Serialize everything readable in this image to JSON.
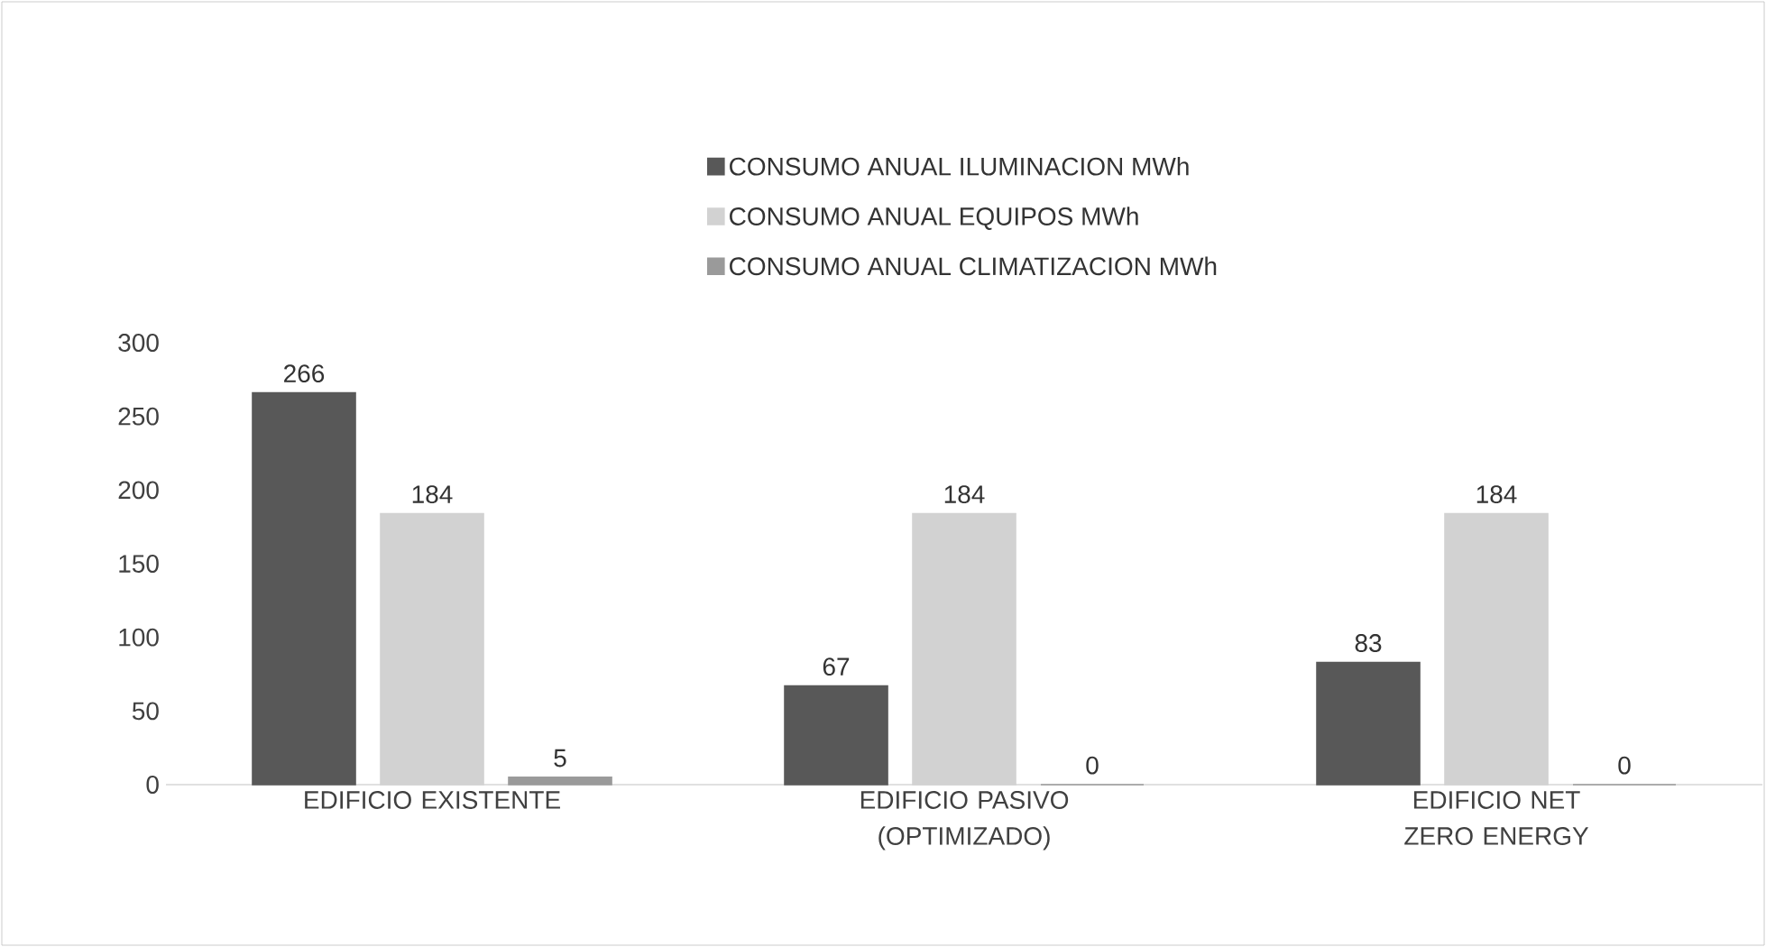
{
  "chart_data": {
    "type": "bar",
    "categories": [
      "EDIFICIO EXISTENTE",
      "EDIFICIO PASIVO (OPTIMIZADO)",
      "EDIFICIO NET ZERO ENERGY"
    ],
    "series": [
      {
        "name": "CONSUMO ANUAL ILUMINACION MWh",
        "color": "#585858",
        "values": [
          266,
          67,
          83
        ]
      },
      {
        "name": "CONSUMO ANUAL EQUIPOS MWh",
        "color": "#d2d2d2",
        "values": [
          184,
          184,
          184
        ]
      },
      {
        "name": "CONSUMO ANUAL CLIMATIZACION MWh",
        "color": "#9a9a9a",
        "values": [
          5,
          0,
          0
        ]
      }
    ],
    "ylim": [
      0,
      300
    ],
    "yticks": [
      0,
      50,
      100,
      150,
      200,
      250,
      300
    ],
    "data_labels": true,
    "legend": "top",
    "grid": false
  }
}
